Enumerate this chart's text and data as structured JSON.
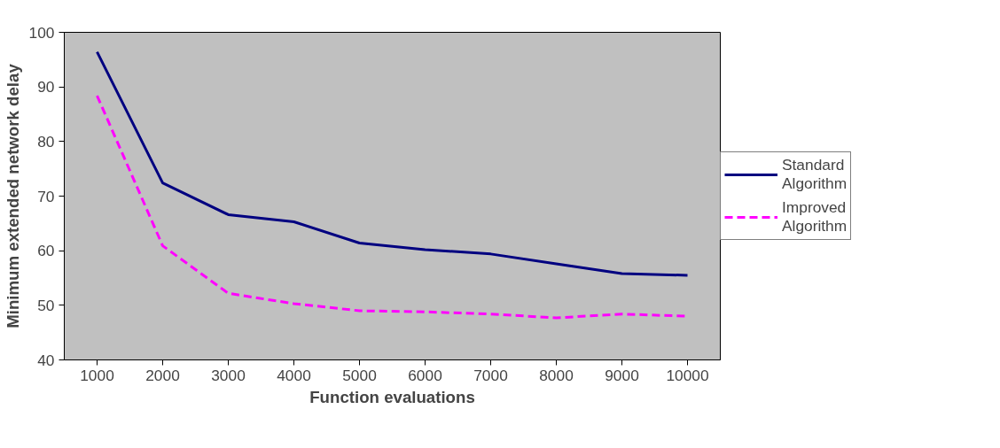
{
  "chart_data": {
    "type": "line",
    "xlabel": "Function evaluations",
    "ylabel": "Minimum extended network delay",
    "categories": [
      "1000",
      "2000",
      "3000",
      "4000",
      "5000",
      "6000",
      "7000",
      "8000",
      "9000",
      "10000"
    ],
    "series": [
      {
        "name": "Standard Algorithm",
        "color": "#000080",
        "line_style": "solid",
        "values": [
          96.4,
          72.4,
          66.6,
          65.3,
          61.4,
          60.2,
          59.4,
          57.6,
          55.8,
          55.5
        ]
      },
      {
        "name": "Improved Algorithm",
        "color": "#ff00ff",
        "line_style": "dashed",
        "values": [
          88.4,
          60.9,
          52.2,
          50.3,
          49.0,
          48.8,
          48.4,
          47.7,
          48.4,
          48.0
        ]
      }
    ],
    "ylim": [
      40,
      100
    ],
    "yticks": [
      40,
      50,
      60,
      70,
      80,
      90,
      100
    ],
    "grid": false,
    "legend": "right",
    "marker": "none"
  }
}
